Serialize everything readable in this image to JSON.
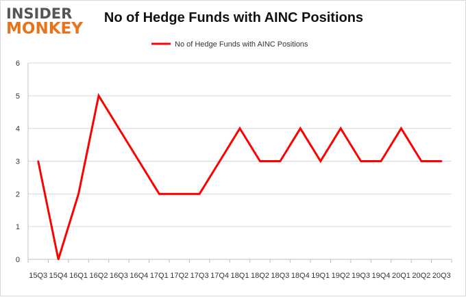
{
  "logo": {
    "line1": "INSIDER",
    "line2": "MONKEY"
  },
  "chart_data": {
    "type": "line",
    "title": "No of Hedge Funds with AINC Positions",
    "xlabel": "",
    "ylabel": "",
    "categories": [
      "15Q3",
      "15Q4",
      "16Q1",
      "16Q2",
      "16Q3",
      "16Q4",
      "17Q1",
      "17Q2",
      "17Q3",
      "17Q4",
      "18Q1",
      "18Q2",
      "18Q3",
      "18Q4",
      "19Q1",
      "19Q2",
      "19Q3",
      "19Q4",
      "20Q1",
      "20Q2",
      "20Q3"
    ],
    "series": [
      {
        "name": "No of Hedge Funds with AINC Positions",
        "values": [
          3,
          0,
          2,
          5,
          4,
          3,
          2,
          2,
          2,
          3,
          4,
          3,
          3,
          4,
          3,
          4,
          3,
          3,
          4,
          3,
          3
        ],
        "color": "#ff0000"
      }
    ],
    "ylim": [
      0,
      6
    ],
    "yticks": [
      0,
      1,
      2,
      3,
      4,
      5,
      6
    ],
    "grid": true,
    "legend_position": "top"
  }
}
